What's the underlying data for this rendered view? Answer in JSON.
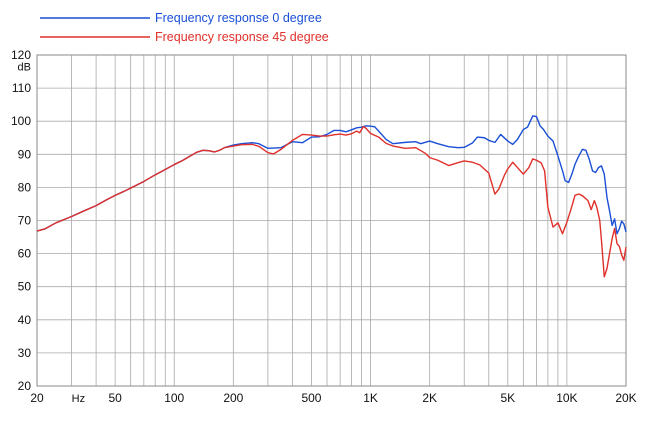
{
  "chart_data": {
    "type": "line",
    "xscale": "log",
    "xlim": [
      20,
      20000
    ],
    "ylim": [
      20,
      120
    ],
    "grid": true,
    "legend_position": "top-left",
    "y_unit_label": "dB",
    "x_unit_label": "Hz",
    "y_ticks": [
      20,
      30,
      40,
      50,
      60,
      70,
      80,
      90,
      100,
      110,
      120
    ],
    "x_tick_labels": [
      {
        "value": 20,
        "label": "20"
      },
      {
        "value": 50,
        "label": "50"
      },
      {
        "value": 100,
        "label": "100"
      },
      {
        "value": 200,
        "label": "200"
      },
      {
        "value": 500,
        "label": "500"
      },
      {
        "value": 1000,
        "label": "1K"
      },
      {
        "value": 2000,
        "label": "2K"
      },
      {
        "value": 5000,
        "label": "5K"
      },
      {
        "value": 10000,
        "label": "10K"
      },
      {
        "value": 20000,
        "label": "20K"
      }
    ],
    "series": [
      {
        "name": "Frequency response 0 degree",
        "color": "#1a4fd6",
        "points": [
          [
            20,
            66.8
          ],
          [
            22,
            67.5
          ],
          [
            25,
            69.3
          ],
          [
            30,
            71.2
          ],
          [
            35,
            73
          ],
          [
            40,
            74.5
          ],
          [
            45,
            76.2
          ],
          [
            50,
            77.6
          ],
          [
            55,
            78.7
          ],
          [
            60,
            79.8
          ],
          [
            70,
            81.8
          ],
          [
            80,
            83.8
          ],
          [
            90,
            85.4
          ],
          [
            100,
            86.9
          ],
          [
            110,
            88.1
          ],
          [
            120,
            89.4
          ],
          [
            130,
            90.6
          ],
          [
            140,
            91.2
          ],
          [
            150,
            91.1
          ],
          [
            160,
            90.7
          ],
          [
            170,
            91.2
          ],
          [
            180,
            92
          ],
          [
            200,
            92.8
          ],
          [
            220,
            93.2
          ],
          [
            250,
            93.5
          ],
          [
            270,
            93.2
          ],
          [
            300,
            91.8
          ],
          [
            350,
            92
          ],
          [
            400,
            93.8
          ],
          [
            450,
            93.5
          ],
          [
            500,
            95.2
          ],
          [
            550,
            95.3
          ],
          [
            600,
            96
          ],
          [
            650,
            97.2
          ],
          [
            700,
            97.2
          ],
          [
            750,
            96.8
          ],
          [
            800,
            97.4
          ],
          [
            850,
            98
          ],
          [
            900,
            98.2
          ],
          [
            950,
            98.6
          ],
          [
            1000,
            98.5
          ],
          [
            1050,
            98.3
          ],
          [
            1100,
            97
          ],
          [
            1200,
            94.5
          ],
          [
            1300,
            93.2
          ],
          [
            1500,
            93.6
          ],
          [
            1700,
            93.8
          ],
          [
            1800,
            93.2
          ],
          [
            2000,
            94
          ],
          [
            2200,
            93.2
          ],
          [
            2500,
            92.3
          ],
          [
            2800,
            92
          ],
          [
            3000,
            92.1
          ],
          [
            3300,
            93.4
          ],
          [
            3500,
            95.2
          ],
          [
            3800,
            95
          ],
          [
            4000,
            94.2
          ],
          [
            4300,
            93.6
          ],
          [
            4600,
            96
          ],
          [
            5000,
            94
          ],
          [
            5300,
            93
          ],
          [
            5600,
            94.5
          ],
          [
            6000,
            97.5
          ],
          [
            6300,
            98.2
          ],
          [
            6700,
            101.6
          ],
          [
            7000,
            101.4
          ],
          [
            7300,
            98.6
          ],
          [
            7600,
            97.5
          ],
          [
            8000,
            95.5
          ],
          [
            8500,
            94
          ],
          [
            9000,
            89.5
          ],
          [
            9500,
            85
          ],
          [
            9800,
            82
          ],
          [
            10200,
            81.5
          ],
          [
            10600,
            84
          ],
          [
            11000,
            87
          ],
          [
            11500,
            89.5
          ],
          [
            12000,
            91.5
          ],
          [
            12500,
            91.2
          ],
          [
            13000,
            88.5
          ],
          [
            13500,
            85
          ],
          [
            14000,
            84.5
          ],
          [
            14500,
            86
          ],
          [
            15000,
            86.5
          ],
          [
            15500,
            84
          ],
          [
            16000,
            77
          ],
          [
            16600,
            72
          ],
          [
            17000,
            68.5
          ],
          [
            17500,
            70.5
          ],
          [
            18000,
            66
          ],
          [
            18500,
            67.5
          ],
          [
            19000,
            69.8
          ],
          [
            19500,
            69
          ],
          [
            20000,
            66.5
          ]
        ]
      },
      {
        "name": "Frequency response 45 degree",
        "color": "#e0302a",
        "points": [
          [
            20,
            66.8
          ],
          [
            22,
            67.5
          ],
          [
            25,
            69.3
          ],
          [
            30,
            71.2
          ],
          [
            35,
            73
          ],
          [
            40,
            74.5
          ],
          [
            45,
            76.2
          ],
          [
            50,
            77.6
          ],
          [
            55,
            78.7
          ],
          [
            60,
            79.8
          ],
          [
            70,
            81.8
          ],
          [
            80,
            83.8
          ],
          [
            90,
            85.4
          ],
          [
            100,
            86.9
          ],
          [
            110,
            88.1
          ],
          [
            120,
            89.4
          ],
          [
            130,
            90.6
          ],
          [
            140,
            91.2
          ],
          [
            150,
            91.1
          ],
          [
            160,
            90.7
          ],
          [
            170,
            91.2
          ],
          [
            180,
            92
          ],
          [
            200,
            92.5
          ],
          [
            220,
            92.9
          ],
          [
            250,
            93
          ],
          [
            270,
            92.4
          ],
          [
            300,
            90.5
          ],
          [
            320,
            90.1
          ],
          [
            350,
            91.5
          ],
          [
            400,
            94.2
          ],
          [
            450,
            96
          ],
          [
            500,
            95.8
          ],
          [
            550,
            95.5
          ],
          [
            600,
            95.5
          ],
          [
            650,
            95.9
          ],
          [
            700,
            96.1
          ],
          [
            750,
            95.8
          ],
          [
            800,
            96.2
          ],
          [
            850,
            97
          ],
          [
            880,
            96.5
          ],
          [
            920,
            98.4
          ],
          [
            950,
            97.8
          ],
          [
            1000,
            96.3
          ],
          [
            1100,
            95.2
          ],
          [
            1200,
            93.3
          ],
          [
            1300,
            92.5
          ],
          [
            1500,
            91.8
          ],
          [
            1700,
            92
          ],
          [
            1900,
            90.3
          ],
          [
            2000,
            89
          ],
          [
            2200,
            88.2
          ],
          [
            2500,
            86.6
          ],
          [
            2800,
            87.5
          ],
          [
            3000,
            88
          ],
          [
            3300,
            87.6
          ],
          [
            3600,
            86.8
          ],
          [
            4000,
            84.3
          ],
          [
            4300,
            78
          ],
          [
            4500,
            79.5
          ],
          [
            4800,
            83.6
          ],
          [
            5000,
            85.6
          ],
          [
            5300,
            87.6
          ],
          [
            5600,
            86
          ],
          [
            6000,
            84
          ],
          [
            6400,
            86
          ],
          [
            6700,
            88.6
          ],
          [
            7000,
            88.2
          ],
          [
            7400,
            87.4
          ],
          [
            7700,
            85
          ],
          [
            8000,
            74
          ],
          [
            8500,
            68
          ],
          [
            9000,
            69.3
          ],
          [
            9500,
            66
          ],
          [
            10000,
            69.5
          ],
          [
            10500,
            73.5
          ],
          [
            11000,
            77.6
          ],
          [
            11500,
            78
          ],
          [
            12000,
            77.5
          ],
          [
            12800,
            76
          ],
          [
            13300,
            73.3
          ],
          [
            13800,
            76
          ],
          [
            14200,
            74
          ],
          [
            14700,
            70
          ],
          [
            15000,
            64
          ],
          [
            15500,
            53
          ],
          [
            16000,
            55.5
          ],
          [
            16600,
            61
          ],
          [
            17000,
            64.5
          ],
          [
            17500,
            67.6
          ],
          [
            18000,
            63
          ],
          [
            18500,
            62.2
          ],
          [
            19000,
            59.6
          ],
          [
            19500,
            58
          ],
          [
            20000,
            62
          ]
        ]
      }
    ]
  }
}
